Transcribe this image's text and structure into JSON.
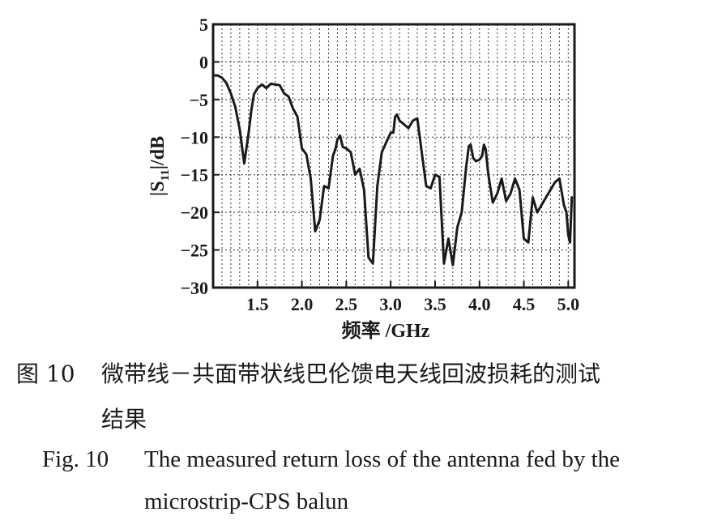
{
  "chart_data": {
    "type": "line",
    "xlabel": "频率 /GHz",
    "ylabel": "|S11|/dB",
    "ylabel_main": "|S",
    "ylabel_sub": "11",
    "ylabel_tail": "|/dB",
    "xlim": [
      1.0,
      5.07
    ],
    "ylim": [
      -30,
      5
    ],
    "x_ticks": [
      1.5,
      2.0,
      2.5,
      3.0,
      3.5,
      4.0,
      4.5,
      5.0
    ],
    "x_tick_labels": [
      "1.5",
      "2.0",
      "2.5",
      "3.0",
      "3.5",
      "4.0",
      "4.5",
      "5.0"
    ],
    "y_ticks": [
      5,
      0,
      -5,
      -10,
      -15,
      -20,
      -25,
      -30
    ],
    "y_tick_labels": [
      "5",
      "0",
      "−5",
      "−10",
      "−15",
      "−20",
      "−25",
      "−30"
    ],
    "grid": true,
    "grid_style": "dotted",
    "series": [
      {
        "color": "#1a1a1a",
        "x": [
          1.0,
          1.05,
          1.1,
          1.15,
          1.2,
          1.25,
          1.3,
          1.35,
          1.4,
          1.43,
          1.46,
          1.5,
          1.55,
          1.6,
          1.65,
          1.7,
          1.75,
          1.8,
          1.85,
          1.9,
          1.95,
          2.0,
          2.05,
          2.1,
          2.15,
          2.2,
          2.25,
          2.3,
          2.35,
          2.38,
          2.4,
          2.43,
          2.46,
          2.5,
          2.55,
          2.6,
          2.65,
          2.7,
          2.75,
          2.8,
          2.85,
          2.9,
          2.95,
          3.0,
          3.03,
          3.05,
          3.07,
          3.1,
          3.15,
          3.2,
          3.25,
          3.3,
          3.35,
          3.4,
          3.45,
          3.5,
          3.55,
          3.6,
          3.65,
          3.7,
          3.75,
          3.8,
          3.85,
          3.88,
          3.9,
          3.93,
          3.96,
          4.0,
          4.03,
          4.05,
          4.07,
          4.1,
          4.15,
          4.2,
          4.25,
          4.3,
          4.35,
          4.4,
          4.45,
          4.5,
          4.55,
          4.6,
          4.65,
          4.7,
          4.75,
          4.8,
          4.85,
          4.9,
          4.95,
          4.98,
          5.0,
          5.02,
          5.04
        ],
        "y": [
          -1.8,
          -1.8,
          -2.1,
          -2.8,
          -4.2,
          -6.0,
          -9.0,
          -13.5,
          -9.5,
          -6.5,
          -4.3,
          -3.5,
          -3.0,
          -3.5,
          -2.9,
          -3.0,
          -3.1,
          -4.2,
          -4.6,
          -6.2,
          -7.3,
          -11.5,
          -12.3,
          -15.5,
          -22.5,
          -21.0,
          -16.5,
          -16.8,
          -12.5,
          -11.5,
          -10.3,
          -9.8,
          -11.3,
          -11.5,
          -12.0,
          -15.0,
          -14.2,
          -17.0,
          -26.0,
          -26.8,
          -16.5,
          -12.0,
          -10.7,
          -9.4,
          -9.4,
          -7.3,
          -7.0,
          -7.8,
          -8.3,
          -8.8,
          -7.8,
          -7.5,
          -12.0,
          -16.5,
          -16.8,
          -15.0,
          -15.3,
          -26.8,
          -23.5,
          -27.0,
          -22.0,
          -20.0,
          -14.0,
          -11.2,
          -11.0,
          -12.8,
          -13.2,
          -13.0,
          -12.5,
          -11.0,
          -11.6,
          -15.0,
          -18.7,
          -17.5,
          -15.5,
          -18.5,
          -17.5,
          -15.5,
          -17.0,
          -23.5,
          -24.0,
          -18.0,
          -20.0,
          -19.0,
          -18.0,
          -17.0,
          -16.0,
          -15.5,
          -19.0,
          -20.0,
          -23.0,
          -24.0,
          -18.0
        ]
      }
    ]
  },
  "caption": {
    "cn_label": "图 10",
    "cn_text_line1": "微带线－共面带状线巴伦馈电天线回波损耗的测试",
    "cn_text_line2": "结果",
    "en_label": "Fig. 10",
    "en_text_line1": "The measured return loss of the antenna fed by the",
    "en_text_line2": "microstrip-CPS balun"
  }
}
